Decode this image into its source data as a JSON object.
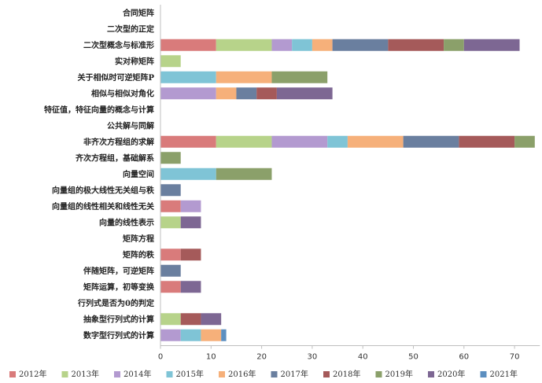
{
  "chart_data": {
    "type": "bar",
    "orientation": "horizontal",
    "stacked": true,
    "title": "",
    "xlabel": "",
    "ylabel": "",
    "xlim": [
      0,
      75
    ],
    "xticks": [
      0,
      10,
      20,
      30,
      40,
      50,
      60,
      70
    ],
    "grid": false,
    "legend_position": "bottom",
    "categories": [
      "合同矩阵",
      "二次型的正定",
      "二次型概念与标准形",
      "实对称矩阵",
      "关于相似时可逆矩阵P",
      "相似与相似对角化",
      "特征值，特征向量的概念与计算",
      "公共解与同解",
      "非齐次方程组的求解",
      "齐次方程组，基础解系",
      "向量空间",
      "向量组的极大线性无关组与秩",
      "向量组的线性相关和线性无关",
      "向量的线性表示",
      "矩阵方程",
      "矩阵的秩",
      "伴随矩阵，可逆矩阵",
      "矩阵运算，初等变换",
      "行列式是否为0的判定",
      "抽象型行列式的计算",
      "数字型行列式的计算"
    ],
    "series": [
      {
        "name": "2012年",
        "color": "#d97b7b",
        "values": [
          0,
          0,
          11,
          0,
          0,
          0,
          0,
          0,
          11,
          0,
          0,
          0,
          4,
          0,
          0,
          4,
          0,
          4,
          0,
          0,
          0
        ]
      },
      {
        "name": "2013年",
        "color": "#b7d38a",
        "values": [
          0,
          0,
          11,
          4,
          0,
          0,
          0,
          0,
          11,
          0,
          0,
          0,
          0,
          4,
          0,
          0,
          0,
          0,
          0,
          4,
          0
        ]
      },
      {
        "name": "2014年",
        "color": "#b39ad0",
        "values": [
          0,
          0,
          4,
          0,
          0,
          11,
          0,
          0,
          11,
          0,
          0,
          0,
          4,
          0,
          0,
          0,
          0,
          0,
          0,
          0,
          4
        ]
      },
      {
        "name": "2015年",
        "color": "#7fc4d6",
        "values": [
          0,
          0,
          4,
          0,
          11,
          0,
          0,
          0,
          4,
          0,
          11,
          0,
          0,
          0,
          0,
          0,
          0,
          0,
          0,
          0,
          4
        ]
      },
      {
        "name": "2016年",
        "color": "#f6b07a",
        "values": [
          0,
          0,
          4,
          0,
          11,
          4,
          0,
          0,
          11,
          0,
          0,
          0,
          0,
          0,
          0,
          0,
          0,
          0,
          0,
          0,
          4
        ]
      },
      {
        "name": "2017年",
        "color": "#6a7f9f",
        "values": [
          0,
          0,
          11,
          0,
          0,
          4,
          0,
          0,
          11,
          0,
          0,
          4,
          0,
          0,
          0,
          0,
          4,
          0,
          0,
          0,
          0
        ]
      },
      {
        "name": "2018年",
        "color": "#a55a5a",
        "values": [
          0,
          0,
          11,
          0,
          0,
          4,
          0,
          0,
          11,
          0,
          0,
          0,
          0,
          0,
          0,
          4,
          0,
          0,
          0,
          4,
          0
        ]
      },
      {
        "name": "2019年",
        "color": "#8ba06a",
        "values": [
          0,
          0,
          4,
          0,
          11,
          0,
          0,
          0,
          4,
          4,
          11,
          0,
          0,
          0,
          0,
          0,
          0,
          0,
          0,
          0,
          0
        ]
      },
      {
        "name": "2020年",
        "color": "#7d6793",
        "values": [
          0,
          0,
          11,
          0,
          0,
          11,
          0,
          0,
          0,
          0,
          0,
          0,
          0,
          4,
          0,
          0,
          0,
          4,
          0,
          4,
          0
        ]
      },
      {
        "name": "2021年",
        "color": "#5c8fc0",
        "values": [
          0,
          0,
          0,
          0,
          0,
          0,
          0,
          0,
          0,
          0,
          0,
          0,
          0,
          0,
          0,
          0,
          0,
          0,
          0,
          0,
          1
        ]
      }
    ]
  }
}
